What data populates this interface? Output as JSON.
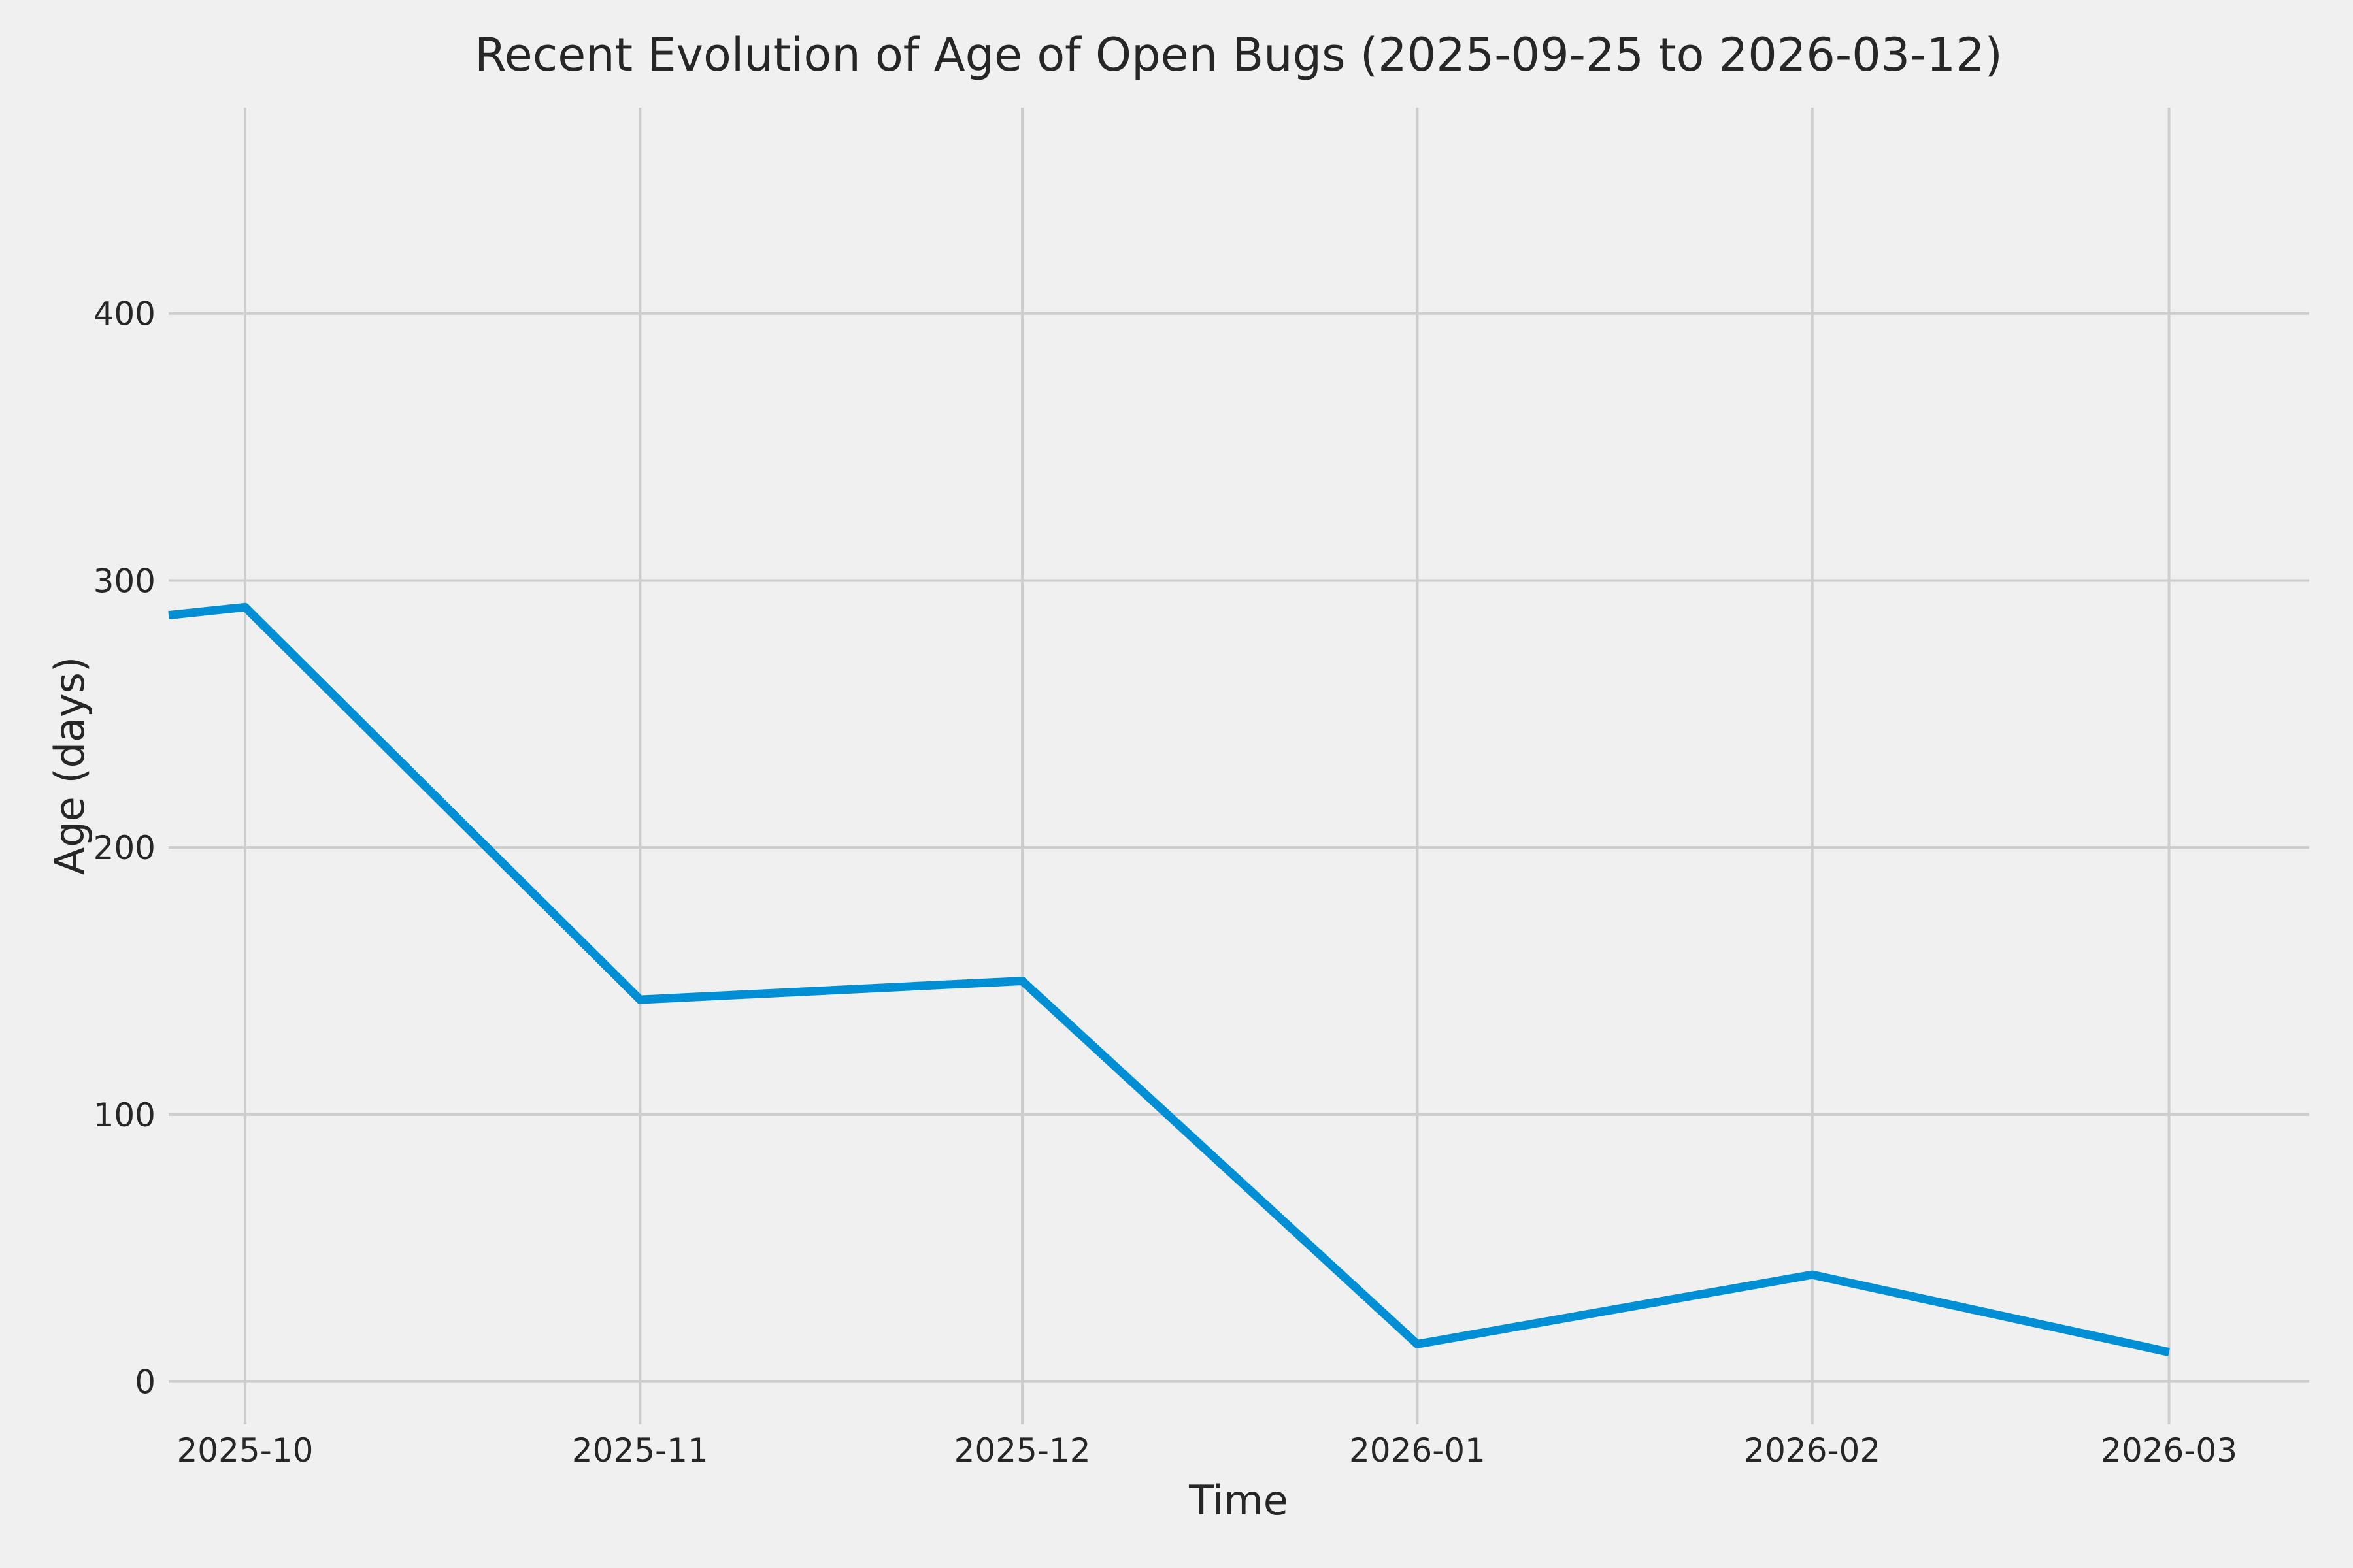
{
  "chart_data": {
    "type": "line",
    "title": "Recent Evolution of Age of Open Bugs (2025-09-25 to 2026-03-12)",
    "xlabel": "Time",
    "ylabel": "Age (days)",
    "series": [
      {
        "name": "Age of open bugs",
        "points": [
          {
            "date": "2025-09-25",
            "value": 287
          },
          {
            "date": "2025-10-01",
            "value": 290
          },
          {
            "date": "2025-11-01",
            "value": 143
          },
          {
            "date": "2025-12-01",
            "value": 150
          },
          {
            "date": "2026-01-01",
            "value": 14
          },
          {
            "date": "2026-02-01",
            "value": 40
          },
          {
            "date": "2026-03-01",
            "value": 11
          }
        ]
      }
    ],
    "x_tick_labels": [
      "2025-10",
      "2025-11",
      "2025-12",
      "2026-01",
      "2026-02",
      "2026-03"
    ],
    "y_ticks": [
      0,
      100,
      200,
      300,
      400
    ],
    "xlim": [
      "2025-09-25",
      "2026-03-12"
    ],
    "ylim": [
      -16,
      477
    ],
    "grid": true,
    "legend": false,
    "colors": {
      "line": "#008fd5",
      "background": "#f0f0f0",
      "grid": "#cdcdcd",
      "text": "#262626"
    }
  }
}
